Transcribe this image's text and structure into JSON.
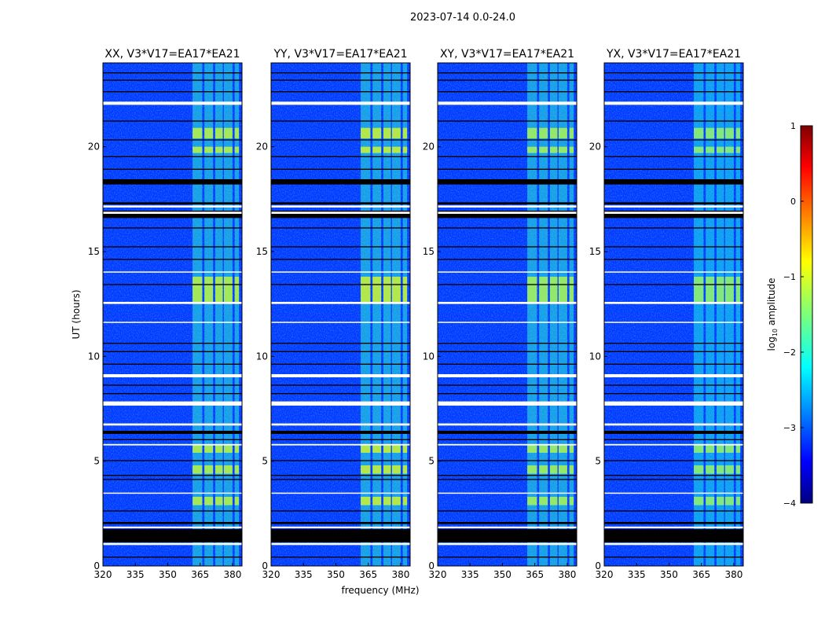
{
  "chart_data": {
    "type": "heatmap",
    "suptitle": "2023-07-14 0.0-24.0",
    "xlabel": "frequency (MHz)",
    "ylabel": "UT (hours)",
    "xlim": [
      320,
      384.4
    ],
    "ylim": [
      0,
      24
    ],
    "xticks": [
      "320",
      "335",
      "350",
      "365",
      "380"
    ],
    "xtick_values": [
      320,
      335,
      350,
      365,
      380
    ],
    "yticks": [
      "0",
      "5",
      "10",
      "15",
      "20"
    ],
    "ytick_values": [
      0,
      5,
      10,
      15,
      20
    ],
    "panels": [
      {
        "title": "XX, V3*V17=EA17*EA21",
        "band_level": -1.9,
        "hot_level": -1.1
      },
      {
        "title": "YY, V3*V17=EA17*EA21",
        "band_level": -1.9,
        "hot_level": -1.0
      },
      {
        "title": "XY, V3*V17=EA17*EA21",
        "band_level": -1.9,
        "hot_level": -1.2
      },
      {
        "title": "YX, V3*V17=EA17*EA21",
        "band_level": -2.0,
        "hot_level": -1.3
      }
    ],
    "background_level": -3.1,
    "rfi_band_mhz": [
      361.5,
      383
    ],
    "rfi_channels_mhz": [
      [
        361.5,
        366
      ],
      [
        367,
        371
      ],
      [
        372,
        375.5
      ],
      [
        376,
        380
      ],
      [
        381,
        383
      ]
    ],
    "hot_intervals_hours": [
      [
        12.5,
        13.8
      ],
      [
        20.4,
        20.9
      ],
      [
        19.7,
        20.0
      ],
      [
        5.4,
        5.8
      ],
      [
        4.4,
        4.8
      ],
      [
        2.9,
        3.3
      ]
    ],
    "flagged_white_hours": [
      [
        22.0,
        22.15
      ],
      [
        17.1,
        17.2
      ],
      [
        16.8,
        16.9
      ],
      [
        14.0,
        14.05
      ],
      [
        12.5,
        12.6
      ],
      [
        11.6,
        11.65
      ],
      [
        9.0,
        9.15
      ],
      [
        7.65,
        7.85
      ],
      [
        6.7,
        6.8
      ],
      [
        5.75,
        5.82
      ],
      [
        3.45,
        3.5
      ],
      [
        1.8,
        1.88
      ],
      [
        1.0,
        1.1
      ]
    ],
    "flagged_black_hours": [
      [
        23.5,
        23.55
      ],
      [
        23.15,
        23.2
      ],
      [
        22.6,
        22.65
      ],
      [
        21.2,
        21.25
      ],
      [
        20.3,
        20.35
      ],
      [
        19.5,
        19.55
      ],
      [
        18.9,
        18.95
      ],
      [
        18.2,
        18.45
      ],
      [
        17.25,
        17.35
      ],
      [
        16.6,
        16.95
      ],
      [
        16.1,
        16.15
      ],
      [
        15.2,
        15.25
      ],
      [
        14.6,
        14.65
      ],
      [
        13.4,
        13.45
      ],
      [
        10.6,
        10.65
      ],
      [
        10.2,
        10.25
      ],
      [
        9.6,
        9.65
      ],
      [
        8.6,
        8.65
      ],
      [
        8.2,
        8.25
      ],
      [
        6.3,
        6.45
      ],
      [
        6.0,
        6.05
      ],
      [
        5.0,
        5.05
      ],
      [
        4.3,
        4.35
      ],
      [
        4.1,
        4.15
      ],
      [
        2.6,
        2.65
      ],
      [
        2.0,
        2.1
      ],
      [
        1.13,
        1.76
      ],
      [
        0.4,
        0.45
      ]
    ],
    "colorbar": {
      "label": "log",
      "label_sub": "10",
      "label_rest": " amplitude",
      "ticks": [
        "1",
        "0",
        "−1",
        "−2",
        "−3",
        "−4"
      ],
      "tick_values": [
        1,
        0,
        -1,
        -2,
        -3,
        -4
      ],
      "range": [
        -4,
        1
      ],
      "colormap": "jet"
    }
  }
}
